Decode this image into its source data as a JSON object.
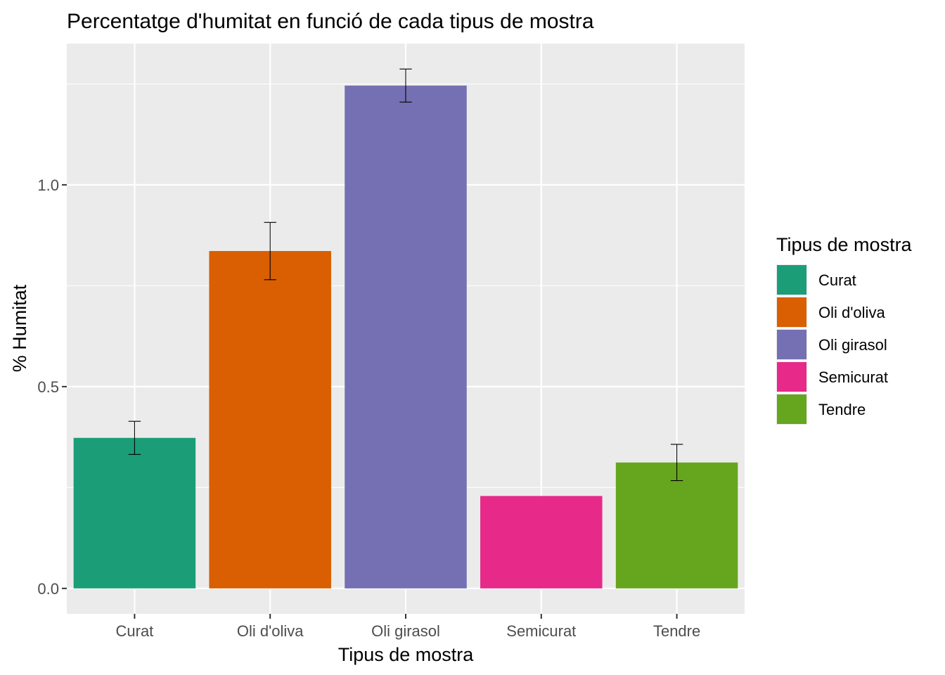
{
  "chart_data": {
    "type": "bar",
    "title": "Percentatge d'humitat en funció de cada tipus de mostra",
    "xlabel": "Tipus de mostra",
    "ylabel": "% Humitat",
    "categories": [
      "Curat",
      "Oli d'oliva",
      "Oli girasol",
      "Semicurat",
      "Tendre"
    ],
    "values": [
      0.373,
      0.836,
      1.246,
      0.229,
      0.312
    ],
    "error_low": [
      0.332,
      0.765,
      1.205,
      null,
      0.267
    ],
    "error_high": [
      0.414,
      0.907,
      1.287,
      null,
      0.357
    ],
    "colors": [
      "#1b9e77",
      "#d95f02",
      "#7570b3",
      "#e7298a",
      "#66a61e"
    ],
    "ylim": [
      -0.063,
      1.35
    ],
    "yticks": [
      0.0,
      0.5,
      1.0
    ],
    "ytick_labels": [
      "0.0",
      "0.5",
      "1.0"
    ],
    "grid": true,
    "panel_background": "#ebebeb",
    "legend": {
      "title": "Tipus de mostra",
      "placement": "right",
      "entries": [
        "Curat",
        "Oli d'oliva",
        "Oli girasol",
        "Semicurat",
        "Tendre"
      ]
    }
  }
}
